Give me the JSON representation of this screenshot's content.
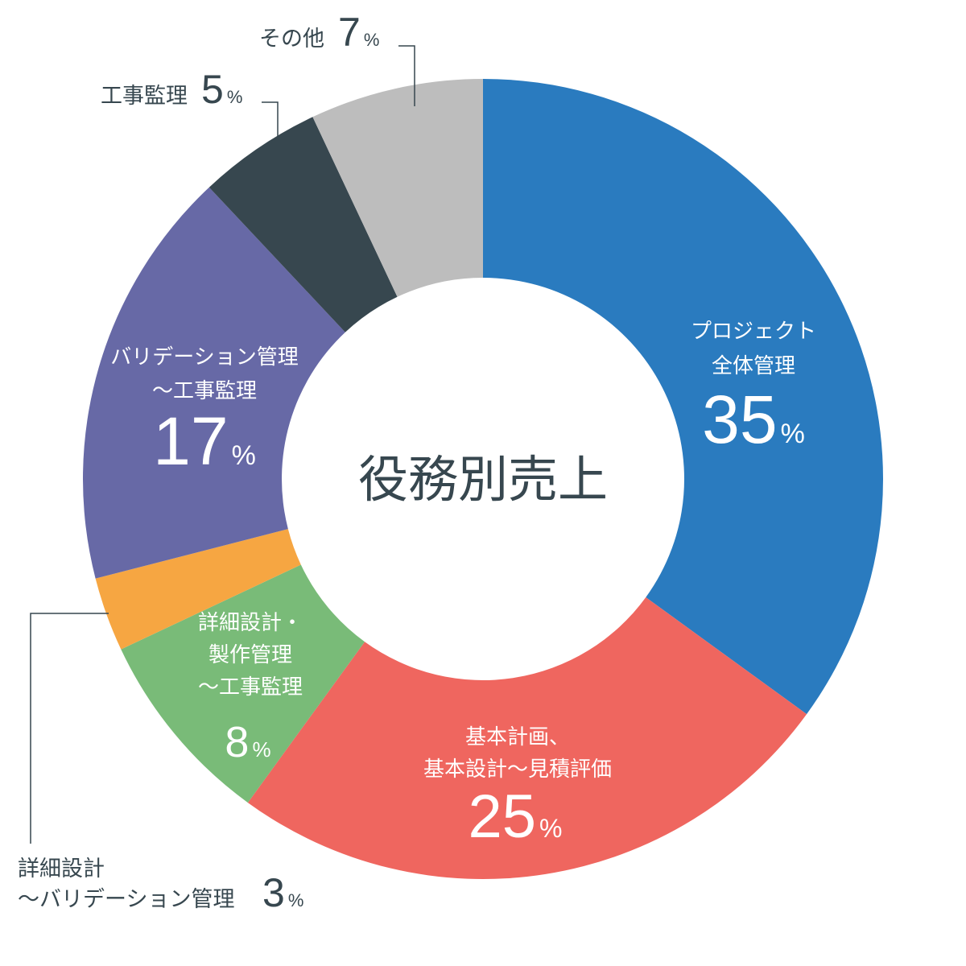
{
  "chart_data": {
    "type": "pie",
    "donut": true,
    "title": "役務別売上",
    "unit": "%",
    "slices": [
      {
        "label_lines": [
          "プロジェクト",
          "全体管理"
        ],
        "value": 35,
        "color": "#2a7bbf",
        "label_position": "inside"
      },
      {
        "label_lines": [
          "基本計画、",
          "基本設計～見積評価"
        ],
        "value": 25,
        "color": "#ef665f",
        "label_position": "inside"
      },
      {
        "label_lines": [
          "詳細設計・",
          "製作管理",
          "～工事監理"
        ],
        "value": 8,
        "color": "#79bb78",
        "label_position": "inside"
      },
      {
        "label_lines": [
          "詳細設計",
          "～バリデーション管理"
        ],
        "value": 3,
        "color": "#f6a642",
        "label_position": "outside-bottom-left"
      },
      {
        "label_lines": [
          "バリデーション管理",
          "～工事監理"
        ],
        "value": 17,
        "color": "#6769a6",
        "label_position": "inside"
      },
      {
        "label_lines": [
          "工事監理"
        ],
        "value": 5,
        "color": "#37474f",
        "label_position": "outside-top-left"
      },
      {
        "label_lines": [
          "その他"
        ],
        "value": 7,
        "color": "#bdbdbd",
        "label_position": "outside-top"
      }
    ],
    "legend": "none"
  }
}
